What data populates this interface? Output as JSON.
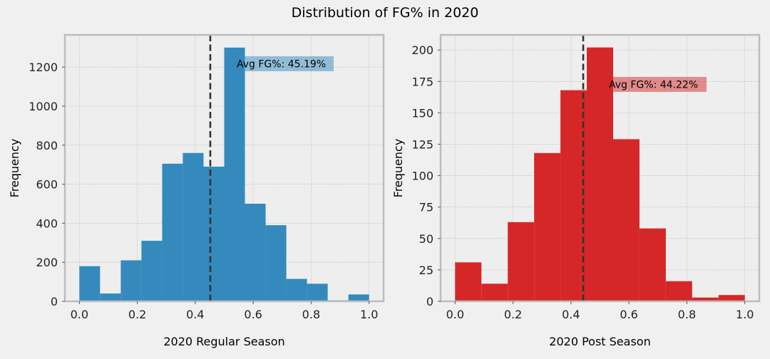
{
  "title": "Distribution of FG% in 2020",
  "chart_data": [
    {
      "type": "bar",
      "subtype": "histogram",
      "xlabel": "2020 Regular Season",
      "ylabel": "Frequency",
      "color": "#348abd",
      "bin_edges": [
        0.0,
        0.0714,
        0.1429,
        0.2143,
        0.2857,
        0.3571,
        0.4286,
        0.5,
        0.5714,
        0.6429,
        0.7143,
        0.7857,
        0.8571,
        0.9286,
        1.0
      ],
      "values": [
        180,
        40,
        210,
        310,
        705,
        760,
        690,
        1300,
        500,
        390,
        115,
        90,
        5,
        35
      ],
      "mean_line": 0.4519,
      "annotation": "Avg FG%: 45.19%",
      "annotation_color": "#348abd",
      "xlim": [
        -0.05,
        1.05
      ],
      "ylim": [
        0,
        1365
      ],
      "xticks": [
        0.0,
        0.2,
        0.4,
        0.6,
        0.8,
        1.0
      ],
      "xtick_labels": [
        "0.0",
        "0.2",
        "0.4",
        "0.6",
        "0.8",
        "1.0"
      ],
      "yticks": [
        0,
        200,
        400,
        600,
        800,
        1000,
        1200
      ],
      "ytick_labels": [
        "0",
        "200",
        "400",
        "600",
        "800",
        "1000",
        "1200"
      ],
      "grid": true
    },
    {
      "type": "bar",
      "subtype": "histogram",
      "xlabel": "2020 Post Season",
      "ylabel": "Frequency",
      "color": "#d62728",
      "bin_edges": [
        0.0,
        0.0909,
        0.1818,
        0.2727,
        0.3636,
        0.4545,
        0.5455,
        0.6364,
        0.7273,
        0.8182,
        0.9091,
        1.0
      ],
      "values": [
        31,
        14,
        63,
        118,
        168,
        202,
        129,
        58,
        16,
        3,
        5
      ],
      "mean_line": 0.4422,
      "annotation": "Avg FG%: 44.22%",
      "annotation_color": "#d62728",
      "xlim": [
        -0.05,
        1.05
      ],
      "ylim": [
        0,
        212
      ],
      "xticks": [
        0.0,
        0.2,
        0.4,
        0.6,
        0.8,
        1.0
      ],
      "xtick_labels": [
        "0.0",
        "0.2",
        "0.4",
        "0.6",
        "0.8",
        "1.0"
      ],
      "yticks": [
        0,
        25,
        50,
        75,
        100,
        125,
        150,
        175,
        200
      ],
      "ytick_labels": [
        "0",
        "25",
        "50",
        "75",
        "100",
        "125",
        "150",
        "175",
        "200"
      ],
      "grid": true
    }
  ]
}
